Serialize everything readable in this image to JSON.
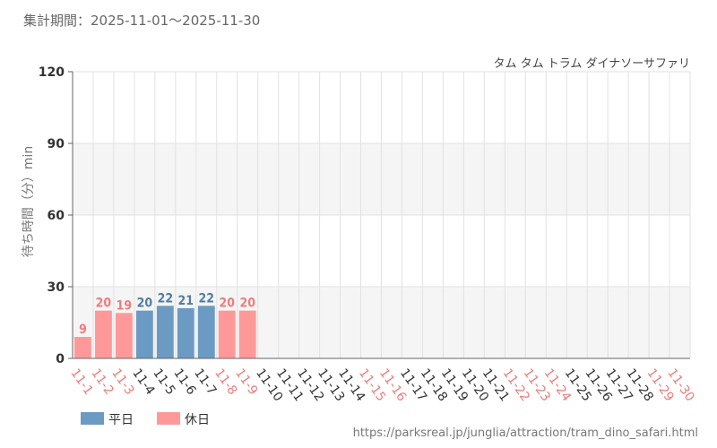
{
  "header": {
    "period": "集計期間：2025-11-01～2025-11-30",
    "subtitle": "タム タム トラム ダイナソーサファリ",
    "source_url": "https://parksreal.jp/junglia/attraction/tram_dino_safari.html"
  },
  "colors": {
    "weekday": "#6b9bc3",
    "holiday": "#ff9999",
    "weekday_text": "#4f7da6",
    "holiday_text": "#f07b7b",
    "tick_weekday": "#333333",
    "tick_holiday": "#f07b7b"
  },
  "chart_data": {
    "type": "bar",
    "title": "",
    "xlabel": "",
    "ylabel": "待ち時間（分）min",
    "ylim": [
      0,
      120
    ],
    "yticks": [
      0,
      30,
      60,
      90,
      120
    ],
    "grid": true,
    "legend_position": "bottom-left",
    "categories": [
      "11-1",
      "11-2",
      "11-3",
      "11-4",
      "11-5",
      "11-6",
      "11-7",
      "11-8",
      "11-9",
      "11-10",
      "11-11",
      "11-12",
      "11-13",
      "11-14",
      "11-15",
      "11-16",
      "11-17",
      "11-18",
      "11-19",
      "11-20",
      "11-21",
      "11-22",
      "11-23",
      "11-24",
      "11-25",
      "11-26",
      "11-27",
      "11-28",
      "11-29",
      "11-30"
    ],
    "day_type": [
      "holiday",
      "holiday",
      "holiday",
      "weekday",
      "weekday",
      "weekday",
      "weekday",
      "holiday",
      "holiday",
      "weekday",
      "weekday",
      "weekday",
      "weekday",
      "weekday",
      "holiday",
      "holiday",
      "weekday",
      "weekday",
      "weekday",
      "weekday",
      "weekday",
      "holiday",
      "holiday",
      "holiday",
      "weekday",
      "weekday",
      "weekday",
      "weekday",
      "holiday",
      "holiday"
    ],
    "values": [
      9,
      20,
      19,
      20,
      22,
      21,
      22,
      20,
      20,
      null,
      null,
      null,
      null,
      null,
      null,
      null,
      null,
      null,
      null,
      null,
      null,
      null,
      null,
      null,
      null,
      null,
      null,
      null,
      null,
      null
    ],
    "legend": [
      {
        "key": "weekday",
        "label": "平日"
      },
      {
        "key": "holiday",
        "label": "休日"
      }
    ]
  }
}
